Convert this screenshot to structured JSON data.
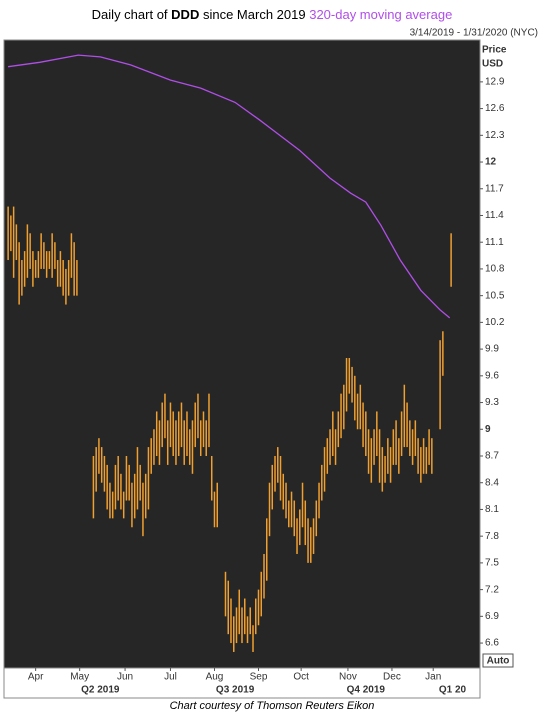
{
  "chart_data": {
    "type": "ohlc",
    "title": [
      "Daily chart of",
      "DDD",
      "since March 2019"
    ],
    "date_range": "3/14/2019 - 1/31/2020 (NYC)",
    "y_axis_label": [
      "Price",
      "USD"
    ],
    "scale_mode": "Auto",
    "footer": "Chart courtesy of Thomson Reuters Eikon",
    "xlim": [
      -3,
      343
    ],
    "ylim": [
      6.32,
      13.37
    ],
    "yticks": [
      6.6,
      6.9,
      7.2,
      7.5,
      7.8,
      8.1,
      8.4,
      8.7,
      9,
      9.3,
      9.6,
      9.9,
      10.2,
      10.5,
      10.8,
      11.1,
      11.4,
      11.7,
      12,
      12.3,
      12.6,
      12.9
    ],
    "xticks": [
      {
        "value": 20,
        "label": "Apr"
      },
      {
        "value": 52,
        "label": "May"
      },
      {
        "value": 85,
        "label": "Jun"
      },
      {
        "value": 118,
        "label": "Jul"
      },
      {
        "value": 150,
        "label": "Aug"
      },
      {
        "value": 182,
        "label": "Sep"
      },
      {
        "value": 213,
        "label": "Oct"
      },
      {
        "value": 247,
        "label": "Nov"
      },
      {
        "value": 279,
        "label": "Dec"
      },
      {
        "value": 309,
        "label": "Jan"
      }
    ],
    "quarter_ticks": [
      {
        "value": 67,
        "label": "Q2 2019"
      },
      {
        "value": 165,
        "label": "Q3 2019"
      },
      {
        "value": 260,
        "label": "Q4 2019"
      },
      {
        "value": 323,
        "label": "Q1 20"
      }
    ],
    "bars": {
      "color": "#f0a030",
      "x": [
        0,
        2,
        4,
        6,
        8,
        10,
        12,
        14,
        16,
        18,
        20,
        22,
        24,
        26,
        28,
        30,
        32,
        34,
        36,
        38,
        40,
        42,
        44,
        46,
        48,
        50,
        62,
        64,
        66,
        68,
        70,
        72,
        74,
        76,
        78,
        80,
        82,
        84,
        86,
        88,
        90,
        92,
        94,
        96,
        98,
        100,
        102,
        104,
        106,
        108,
        110,
        112,
        114,
        116,
        118,
        120,
        122,
        124,
        126,
        128,
        130,
        132,
        134,
        136,
        138,
        140,
        142,
        144,
        146,
        148,
        150,
        152,
        158,
        160,
        162,
        164,
        166,
        168,
        170,
        172,
        174,
        176,
        178,
        180,
        182,
        184,
        186,
        188,
        190,
        192,
        194,
        196,
        198,
        200,
        202,
        204,
        206,
        208,
        210,
        212,
        214,
        216,
        218,
        220,
        222,
        224,
        226,
        228,
        230,
        232,
        234,
        236,
        238,
        240,
        242,
        244,
        246,
        248,
        250,
        252,
        254,
        256,
        258,
        260,
        262,
        264,
        266,
        268,
        270,
        272,
        274,
        276,
        278,
        280,
        282,
        284,
        286,
        288,
        290,
        292,
        294,
        296,
        298,
        300,
        302,
        304,
        306,
        308,
        314,
        316,
        322
      ],
      "high": [
        11.5,
        11.4,
        11.5,
        11.3,
        11.1,
        10.9,
        11.0,
        11.3,
        11.2,
        11.0,
        10.9,
        11.0,
        11.2,
        11.1,
        11.0,
        11.0,
        11.2,
        11.1,
        10.9,
        11.0,
        10.9,
        10.8,
        10.9,
        11.2,
        11.1,
        10.9,
        8.7,
        8.8,
        8.9,
        8.8,
        8.7,
        8.6,
        8.4,
        8.3,
        8.6,
        8.7,
        8.5,
        8.3,
        8.7,
        8.6,
        8.4,
        8.5,
        8.8,
        8.6,
        8.4,
        8.5,
        8.8,
        8.9,
        9.0,
        9.2,
        9.1,
        9.3,
        9.4,
        9.1,
        9.3,
        9.2,
        9.1,
        9.2,
        9.3,
        9.1,
        9.2,
        9.0,
        9.1,
        9.3,
        9.4,
        9.1,
        9.2,
        9.1,
        9.4,
        8.7,
        8.3,
        8.4,
        7.4,
        7.3,
        7.1,
        6.9,
        7.0,
        7.2,
        7.0,
        7.1,
        6.9,
        7.0,
        6.8,
        7.1,
        7.2,
        7.4,
        7.6,
        8.0,
        8.4,
        8.6,
        8.7,
        8.8,
        8.7,
        8.5,
        8.4,
        8.2,
        8.3,
        8.2,
        8.0,
        8.1,
        8.4,
        8.2,
        8.0,
        7.9,
        8.0,
        8.2,
        8.4,
        8.6,
        8.8,
        8.9,
        9.0,
        9.2,
        9.0,
        9.2,
        9.4,
        9.5,
        9.8,
        9.8,
        9.7,
        9.6,
        9.4,
        9.5,
        9.3,
        9.2,
        9.0,
        8.9,
        9.0,
        9.2,
        9.0,
        8.8,
        8.7,
        8.9,
        8.8,
        9.0,
        9.1,
        8.9,
        9.2,
        9.5,
        9.3,
        9.1,
        9.0,
        9.1,
        8.9,
        8.8,
        8.9,
        8.8,
        9.0,
        8.9,
        10.0,
        10.1,
        11.2
      ],
      "low": [
        10.9,
        11.0,
        10.7,
        10.9,
        10.4,
        10.5,
        10.6,
        10.7,
        10.8,
        10.6,
        10.7,
        10.7,
        10.8,
        10.8,
        10.7,
        10.8,
        10.7,
        10.8,
        10.6,
        10.6,
        10.5,
        10.4,
        10.5,
        10.7,
        10.5,
        10.5,
        8.0,
        8.3,
        8.5,
        8.4,
        8.3,
        8.1,
        8.0,
        8.0,
        8.1,
        8.2,
        8.1,
        8.0,
        8.2,
        8.2,
        7.9,
        8.0,
        8.1,
        8.2,
        7.8,
        8.0,
        8.1,
        8.5,
        8.6,
        8.7,
        8.6,
        8.8,
        8.9,
        8.6,
        8.8,
        8.7,
        8.6,
        8.7,
        8.8,
        8.6,
        8.7,
        8.6,
        8.5,
        8.8,
        8.9,
        8.7,
        8.8,
        8.7,
        8.8,
        8.2,
        7.9,
        7.9,
        6.9,
        6.7,
        6.6,
        6.5,
        6.6,
        6.7,
        6.6,
        6.7,
        6.6,
        6.7,
        6.5,
        6.7,
        6.8,
        6.9,
        7.1,
        7.3,
        7.8,
        8.1,
        8.3,
        8.4,
        8.2,
        8.1,
        8.0,
        7.9,
        7.9,
        7.8,
        7.6,
        7.7,
        7.9,
        7.7,
        7.5,
        7.5,
        7.6,
        7.8,
        8.0,
        8.2,
        8.3,
        8.5,
        8.6,
        8.7,
        8.6,
        8.8,
        8.9,
        9.0,
        9.2,
        9.4,
        9.3,
        9.1,
        9.0,
        9.0,
        8.8,
        8.7,
        8.5,
        8.4,
        8.6,
        8.7,
        8.4,
        8.3,
        8.4,
        8.5,
        8.4,
        8.6,
        8.6,
        8.5,
        8.7,
        8.8,
        8.8,
        8.7,
        8.6,
        8.7,
        8.5,
        8.4,
        8.5,
        8.5,
        8.6,
        8.5,
        9.0,
        9.6,
        10.6
      ]
    },
    "moving_average": {
      "name": "320-day moving average",
      "color": "#b04ee8",
      "x": [
        0,
        23,
        51,
        67,
        89,
        118,
        140,
        165,
        183,
        212,
        234,
        249,
        260,
        271,
        285,
        300,
        314,
        321
      ],
      "values": [
        13.07,
        13.12,
        13.2,
        13.18,
        13.09,
        12.92,
        12.83,
        12.67,
        12.47,
        12.13,
        11.82,
        11.65,
        11.55,
        11.29,
        10.9,
        10.56,
        10.34,
        10.25
      ]
    }
  }
}
